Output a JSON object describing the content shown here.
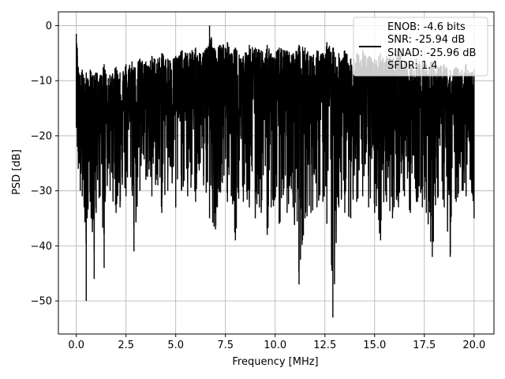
{
  "chart_data": {
    "type": "line",
    "title": "",
    "xlabel": "Frequency [MHz]",
    "ylabel": "PSD [dB]",
    "xlim": [
      -0.9,
      21.0
    ],
    "ylim": [
      -56,
      2.5
    ],
    "xticks": [
      0.0,
      2.5,
      5.0,
      7.5,
      10.0,
      12.5,
      15.0,
      17.5,
      20.0
    ],
    "xtick_labels": [
      "0.0",
      "2.5",
      "5.0",
      "7.5",
      "10.0",
      "12.5",
      "15.0",
      "17.5",
      "20.0"
    ],
    "yticks": [
      0,
      -10,
      -20,
      -30,
      -40,
      -50
    ],
    "ytick_labels": [
      "0",
      "−10",
      "−20",
      "−30",
      "−40",
      "−50"
    ],
    "grid": true,
    "legend_position": "top-right",
    "legend_lines": [
      "ENOB: -4.6 bits",
      "SNR: -25.94 dB",
      "SINAD: -25.96 dB",
      "SFDR: 1.4"
    ],
    "series": [
      {
        "color": "#000000",
        "x": [
          0.0,
          0.05,
          0.1,
          0.2,
          0.3,
          0.4,
          0.5,
          0.55,
          0.7,
          0.9,
          1.0,
          1.2,
          1.4,
          1.45,
          1.7,
          2.0,
          2.2,
          2.5,
          2.8,
          2.9,
          3.2,
          3.5,
          3.8,
          4.1,
          4.3,
          4.6,
          5.0,
          5.3,
          5.6,
          6.0,
          6.4,
          6.7,
          7.0,
          7.2,
          7.6,
          7.8,
          8.0,
          8.4,
          8.7,
          9.0,
          9.3,
          9.6,
          9.8,
          10.2,
          10.6,
          10.9,
          11.2,
          11.5,
          11.8,
          12.1,
          12.4,
          12.6,
          12.9,
          13.2,
          13.5,
          13.8,
          14.1,
          14.4,
          14.7,
          15.0,
          15.3,
          15.6,
          15.9,
          16.2,
          16.5,
          16.8,
          17.1,
          17.4,
          17.6,
          17.9,
          18.2,
          18.5,
          18.8,
          19.1,
          19.4,
          19.6,
          19.8,
          20.0
        ],
        "y_high": [
          -1.5,
          -4.0,
          -7.5,
          -9.0,
          -8.0,
          -9.5,
          -8.5,
          -10.0,
          -8.0,
          -9.0,
          -8.5,
          -9.0,
          -7.0,
          -8.0,
          -9.0,
          -7.5,
          -8.5,
          -7.0,
          -6.5,
          -7.5,
          -6.0,
          -6.5,
          -5.5,
          -6.0,
          -5.0,
          -6.0,
          -5.5,
          -4.5,
          -5.0,
          -4.0,
          -5.0,
          0.0,
          -4.5,
          -3.5,
          -3.0,
          -5.0,
          -4.0,
          -5.5,
          -3.5,
          -4.0,
          -4.5,
          -3.5,
          -5.0,
          -4.0,
          -4.5,
          -5.0,
          -3.5,
          -4.0,
          -5.5,
          -4.5,
          -5.0,
          -3.0,
          -4.0,
          -5.0,
          -4.5,
          -6.0,
          -5.0,
          -4.5,
          -5.5,
          -6.0,
          -5.0,
          -5.5,
          -6.0,
          -4.5,
          -6.5,
          -7.0,
          -6.0,
          -6.5,
          -7.0,
          -6.5,
          -7.5,
          -7.0,
          -8.0,
          -7.5,
          -8.0,
          -7.0,
          -8.5,
          -8.0
        ],
        "y_low": [
          -18.0,
          -22.0,
          -26.0,
          -30.0,
          -31.0,
          -33.0,
          -50.0,
          -35.0,
          -32.0,
          -46.0,
          -34.0,
          -31.0,
          -44.0,
          -32.0,
          -30.0,
          -34.0,
          -33.0,
          -31.0,
          -30.0,
          -41.0,
          -30.0,
          -28.0,
          -31.0,
          -29.0,
          -34.0,
          -30.0,
          -33.0,
          -30.0,
          -31.0,
          -32.0,
          -29.0,
          -35.0,
          -37.0,
          -30.0,
          -32.0,
          -31.0,
          -39.0,
          -32.0,
          -33.0,
          -35.0,
          -34.0,
          -38.0,
          -33.0,
          -36.0,
          -34.0,
          -33.0,
          -47.0,
          -35.0,
          -34.0,
          -33.0,
          -32.0,
          -36.0,
          -53.0,
          -33.0,
          -34.0,
          -35.0,
          -32.0,
          -31.0,
          -33.0,
          -34.0,
          -39.0,
          -32.0,
          -35.0,
          -33.0,
          -31.0,
          -34.0,
          -32.0,
          -33.0,
          -34.0,
          -42.0,
          -31.0,
          -33.0,
          -42.0,
          -32.0,
          -30.0,
          -31.0,
          -28.0,
          -35.0
        ],
        "y_mid": [
          -14.0,
          -15.0,
          -16.0,
          -17.0,
          -16.0,
          -17.5,
          -17.0,
          -16.0,
          -15.5,
          -16.0,
          -15.0,
          -16.0,
          -15.5,
          -15.0,
          -14.5,
          -15.0,
          -14.5,
          -14.0,
          -14.5,
          -14.0,
          -13.5,
          -14.0,
          -13.5,
          -13.0,
          -13.5,
          -13.0,
          -12.5,
          -13.0,
          -12.5,
          -12.0,
          -12.5,
          -12.0,
          -12.5,
          -12.0,
          -12.0,
          -12.5,
          -12.0,
          -12.5,
          -12.0,
          -12.5,
          -12.0,
          -12.0,
          -12.5,
          -12.0,
          -12.5,
          -12.5,
          -12.0,
          -12.5,
          -13.0,
          -12.5,
          -13.0,
          -12.5,
          -13.0,
          -13.0,
          -13.5,
          -13.0,
          -13.5,
          -13.5,
          -14.0,
          -13.5,
          -14.0,
          -14.0,
          -14.5,
          -14.0,
          -14.5,
          -14.5,
          -15.0,
          -14.5,
          -15.0,
          -15.0,
          -15.5,
          -15.0,
          -15.5,
          -15.5,
          -16.0,
          -15.5,
          -16.0,
          -16.0
        ]
      }
    ]
  }
}
